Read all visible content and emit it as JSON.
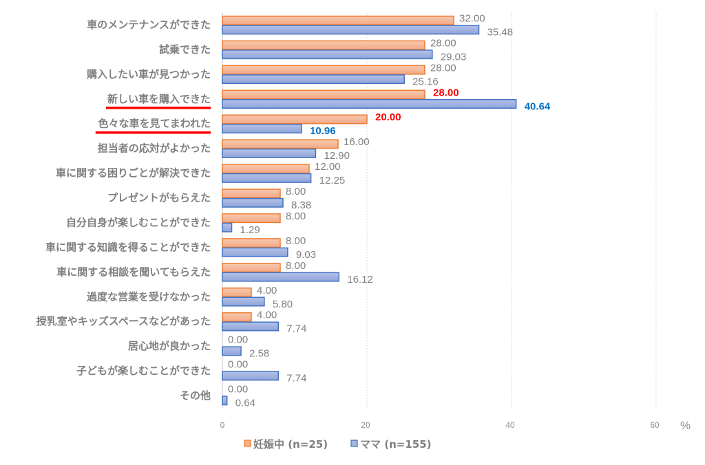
{
  "chart_data": {
    "type": "bar",
    "orientation": "horizontal",
    "title": "",
    "xlabel": "",
    "ylabel": "",
    "unit": "%",
    "xlim": [
      0,
      65
    ],
    "xticks": [
      0,
      20,
      40,
      60
    ],
    "grid": true,
    "legend_position": "bottom",
    "categories": [
      "車のメンテナンスができた",
      "試乗できた",
      "購入したい車が見つかった",
      "新しい車を購入できた",
      "色々な車を見てまわれた",
      "担当者の応対がよかった",
      "車に関する困りごとが解決できた",
      "プレゼントがもらえた",
      "自分自身が楽しむことができた",
      "車に関する知識を得ることができた",
      "車に関する相談を聞いてもらえた",
      "過度な営業を受けなかった",
      "授乳室やキッズスペースなどがあった",
      "居心地が良かった",
      "子どもが楽しむことができた",
      "その他"
    ],
    "series": [
      {
        "name": "妊娠中 (n=25)",
        "color": "#f4b183",
        "border": "#ed7d31",
        "values": [
          32.0,
          28.0,
          28.0,
          28.0,
          20.0,
          16.0,
          12.0,
          8.0,
          8.0,
          8.0,
          8.0,
          4.0,
          4.0,
          0.0,
          0.0,
          0.0
        ],
        "labels": [
          "32.00",
          "28.00",
          "28.00",
          "28.00",
          "20.00",
          "16.00",
          "12.00",
          "8.00",
          "8.00",
          "8.00",
          "8.00",
          "4.00",
          "4.00",
          "0.00",
          "0.00",
          "0.00"
        ]
      },
      {
        "name": "ママ (n=155)",
        "color": "#a5b5e0",
        "border": "#4472c4",
        "values": [
          35.48,
          29.03,
          25.16,
          40.64,
          10.96,
          12.9,
          12.25,
          8.38,
          1.29,
          9.03,
          16.12,
          5.8,
          7.74,
          2.58,
          7.74,
          0.64
        ],
        "labels": [
          "35.48",
          "29.03",
          "25.16",
          "40.64",
          "10.96",
          "12.90",
          "12.25",
          "8.38",
          "1.29",
          "9.03",
          "16.12",
          "5.80",
          "7.74",
          "2.58",
          "7.74",
          "0.64"
        ]
      }
    ],
    "highlighted_categories": [
      3,
      4
    ],
    "highlight_colors": {
      "underline": "#ff0000",
      "series0_label": "#ff0000",
      "series1_label": "#0070c0",
      "default_label": "#7f7f7f"
    }
  }
}
